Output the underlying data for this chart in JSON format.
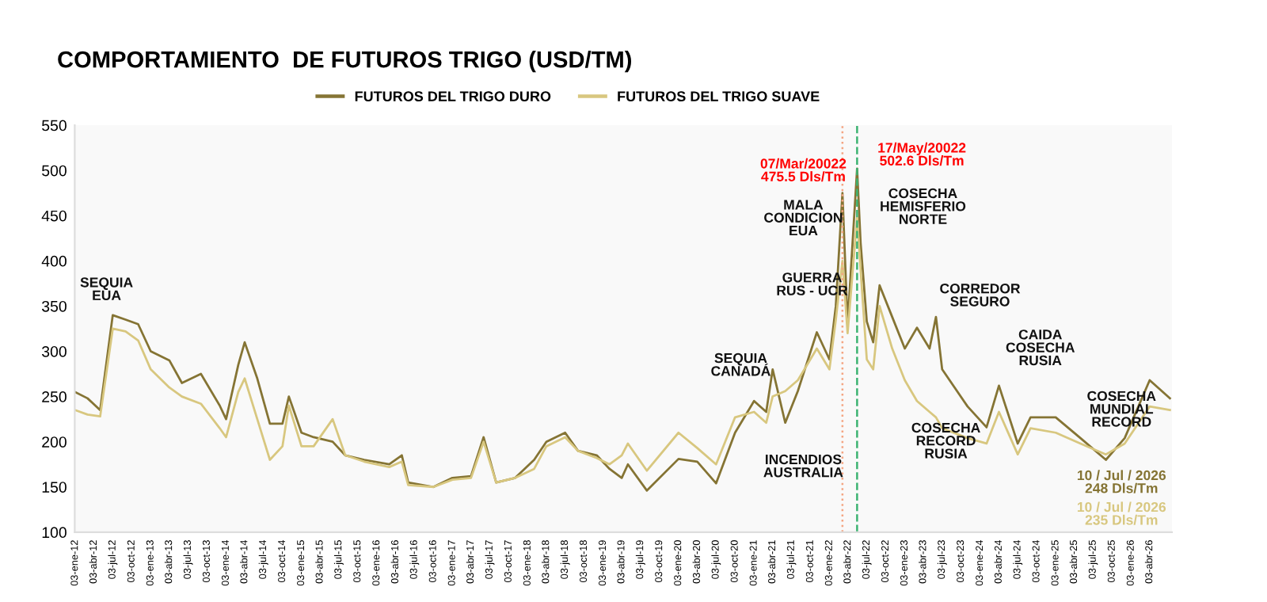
{
  "chart_data": {
    "type": "line",
    "title": "COMPORTAMIENTO  DE FUTUROS TRIGO (USD/TM)",
    "x": [
      "2012-01-03",
      "2012-03-03",
      "2012-05-03",
      "2012-07-03",
      "2012-09-03",
      "2012-11-03",
      "2013-01-03",
      "2013-04-03",
      "2013-06-03",
      "2013-09-03",
      "2013-12-03",
      "2014-01-03",
      "2014-03-03",
      "2014-04-03",
      "2014-06-03",
      "2014-08-03",
      "2014-10-03",
      "2014-11-03",
      "2015-01-03",
      "2015-03-03",
      "2015-06-03",
      "2015-08-03",
      "2015-11-03",
      "2016-03-03",
      "2016-05-03",
      "2016-06-03",
      "2016-10-03",
      "2017-01-03",
      "2017-04-03",
      "2017-06-03",
      "2017-08-03",
      "2017-11-03",
      "2018-02-03",
      "2018-04-03",
      "2018-07-03",
      "2018-09-03",
      "2018-12-03",
      "2019-02-03",
      "2019-04-03",
      "2019-05-03",
      "2019-08-03",
      "2020-01-03",
      "2020-04-03",
      "2020-07-03",
      "2020-10-03",
      "2021-01-03",
      "2021-03-03",
      "2021-04-03",
      "2021-06-03",
      "2021-08-03",
      "2021-11-03",
      "2022-01-03",
      "2022-02-03",
      "2022-03-07",
      "2022-04-01",
      "2022-05-17",
      "2022-06-03",
      "2022-07-03",
      "2022-08-03",
      "2022-09-03",
      "2022-11-03",
      "2023-01-03",
      "2023-03-03",
      "2023-05-03",
      "2023-06-03",
      "2023-07-03",
      "2023-11-03",
      "2024-02-03",
      "2024-04-03",
      "2024-07-03",
      "2024-09-03",
      "2025-01-03",
      "2025-05-03",
      "2025-09-03",
      "2025-12-03",
      "2026-04-03",
      "2026-07-10"
    ],
    "series": [
      {
        "name": "FUTUROS DEL TRIGO DURO",
        "color": "#857434",
        "values": [
          255,
          248,
          235,
          340,
          335,
          330,
          300,
          290,
          265,
          275,
          240,
          225,
          285,
          310,
          270,
          220,
          220,
          250,
          210,
          205,
          200,
          185,
          180,
          175,
          185,
          155,
          150,
          160,
          162,
          205,
          155,
          160,
          180,
          200,
          210,
          190,
          185,
          170,
          160,
          175,
          146,
          181,
          178,
          154,
          210,
          245,
          233,
          280,
          221,
          256,
          321,
          291,
          350,
          475,
          330,
          502,
          420,
          333,
          310,
          373,
          338,
          303,
          326,
          303,
          338,
          280,
          239,
          216,
          262,
          198,
          227,
          227,
          204,
          180,
          204,
          268,
          248
        ]
      },
      {
        "name": "FUTUROS DEL TRIGO SUAVE",
        "color": "#d8c77f",
        "values": [
          235,
          230,
          228,
          325,
          322,
          312,
          280,
          260,
          250,
          242,
          215,
          205,
          255,
          270,
          225,
          180,
          195,
          240,
          195,
          195,
          225,
          185,
          178,
          172,
          178,
          152,
          150,
          158,
          160,
          200,
          155,
          160,
          170,
          195,
          205,
          190,
          182,
          175,
          185,
          198,
          168,
          210,
          193,
          175,
          227,
          233,
          221,
          250,
          256,
          268,
          303,
          280,
          335,
          400,
          320,
          448,
          390,
          291,
          280,
          350,
          303,
          268,
          245,
          233,
          227,
          215,
          204,
          198,
          233,
          186,
          215,
          210,
          198,
          186,
          198,
          239,
          235
        ]
      }
    ],
    "xlim": [
      "2012-01-01",
      "2026-07-20"
    ],
    "xticks": [
      {
        "value": "2012-01-03",
        "label": "03-ene-12"
      },
      {
        "value": "2012-04-03",
        "label": "03-abr-12"
      },
      {
        "value": "2012-07-03",
        "label": "03-jul-12"
      },
      {
        "value": "2012-10-03",
        "label": "03-oct-12"
      },
      {
        "value": "2013-01-03",
        "label": "03-ene-13"
      },
      {
        "value": "2013-04-03",
        "label": "03-abr-13"
      },
      {
        "value": "2013-07-03",
        "label": "03-jul-13"
      },
      {
        "value": "2013-10-03",
        "label": "03-oct-13"
      },
      {
        "value": "2014-01-03",
        "label": "03-ene-14"
      },
      {
        "value": "2014-04-03",
        "label": "03-abr-14"
      },
      {
        "value": "2014-07-03",
        "label": "03-jul-14"
      },
      {
        "value": "2014-10-03",
        "label": "03-oct-14"
      },
      {
        "value": "2015-01-03",
        "label": "03-ene-15"
      },
      {
        "value": "2015-04-03",
        "label": "03-abr-15"
      },
      {
        "value": "2015-07-03",
        "label": "03-jul-15"
      },
      {
        "value": "2015-10-03",
        "label": "03-oct-15"
      },
      {
        "value": "2016-01-03",
        "label": "03-ene-16"
      },
      {
        "value": "2016-04-03",
        "label": "03-abr-16"
      },
      {
        "value": "2016-07-03",
        "label": "03-jul-16"
      },
      {
        "value": "2016-10-03",
        "label": "03-oct-16"
      },
      {
        "value": "2017-01-03",
        "label": "03-ene-17"
      },
      {
        "value": "2017-04-03",
        "label": "03-abr-17"
      },
      {
        "value": "2017-07-03",
        "label": "03-jul-17"
      },
      {
        "value": "2017-10-03",
        "label": "03-oct-17"
      },
      {
        "value": "2018-01-03",
        "label": "03-ene-18"
      },
      {
        "value": "2018-04-03",
        "label": "03-abr-18"
      },
      {
        "value": "2018-07-03",
        "label": "03-jul-18"
      },
      {
        "value": "2018-10-03",
        "label": "03-oct-18"
      },
      {
        "value": "2019-01-03",
        "label": "03-ene-19"
      },
      {
        "value": "2019-04-03",
        "label": "03-abr-19"
      },
      {
        "value": "2019-07-03",
        "label": "03-jul-19"
      },
      {
        "value": "2019-10-03",
        "label": "03-oct-19"
      },
      {
        "value": "2020-01-03",
        "label": "03-ene-20"
      },
      {
        "value": "2020-04-03",
        "label": "03-abr-20"
      },
      {
        "value": "2020-07-03",
        "label": "03-jul-20"
      },
      {
        "value": "2020-10-03",
        "label": "03-oct-20"
      },
      {
        "value": "2021-01-03",
        "label": "03-ene-21"
      },
      {
        "value": "2021-04-03",
        "label": "03-abr-21"
      },
      {
        "value": "2021-07-03",
        "label": "03-jul-21"
      },
      {
        "value": "2021-10-03",
        "label": "03-oct-21"
      },
      {
        "value": "2022-01-03",
        "label": "03-ene-22"
      },
      {
        "value": "2022-04-03",
        "label": "03-abr-22"
      },
      {
        "value": "2022-07-03",
        "label": "03-jul-22"
      },
      {
        "value": "2022-10-03",
        "label": "03-oct-22"
      },
      {
        "value": "2023-01-03",
        "label": "03-ene-23"
      },
      {
        "value": "2023-04-03",
        "label": "03-abr-23"
      },
      {
        "value": "2023-07-03",
        "label": "03-jul-23"
      },
      {
        "value": "2023-10-03",
        "label": "03-oct-23"
      },
      {
        "value": "2024-01-03",
        "label": "03-ene-24"
      },
      {
        "value": "2024-04-03",
        "label": "03-abr-24"
      },
      {
        "value": "2024-07-03",
        "label": "03-jul-24"
      },
      {
        "value": "2024-10-03",
        "label": "03-oct-24"
      },
      {
        "value": "2025-01-03",
        "label": "03-ene-25"
      },
      {
        "value": "2025-04-03",
        "label": "03-abr-25"
      },
      {
        "value": "2025-07-03",
        "label": "03-jul-25"
      },
      {
        "value": "2025-10-03",
        "label": "03-oct-25"
      },
      {
        "value": "2026-01-03",
        "label": "03-ene-26"
      },
      {
        "value": "2026-04-03",
        "label": "03-abr-26"
      }
    ],
    "ylim": [
      100,
      550
    ],
    "yticks": [
      100,
      150,
      200,
      250,
      300,
      350,
      400,
      450,
      500,
      550
    ],
    "ref_lines": [
      {
        "axis": "x",
        "value": "2022-03-07",
        "label": null,
        "color": "#f4a582",
        "line_style": "dotted"
      },
      {
        "axis": "x",
        "value": "2022-05-17",
        "label": null,
        "color": "#3cb371",
        "line_style": "dashed"
      }
    ],
    "annotations": [
      "SEQUIA\nEUA",
      "SEQUIA\nCANADÁ",
      "INCENDIOS\nAUSTRALIA",
      "GUERRA\nRUS - UCR",
      "MALA\nCONDICION\nEUA",
      "07/Mar/20022\n475.5 Dls/Tm",
      "17/May/20022\n502.6 Dls/Tm",
      "COSECHA\nHEMISFERIO\nNORTE",
      "CORREDOR\nSEGURO",
      "COSECHA\nRECORD\nRUSIA",
      "CAIDA\nCOSECHA\nRUSIA",
      "COSECHA\nMUNDIAL\nRECORD",
      "10 / Jul / 2026\n248 Dls/Tm",
      "10 / Jul / 2026\n235 Dls/Tm"
    ],
    "legend": "top",
    "grid": false,
    "marker": "none",
    "line_style": "solid"
  }
}
